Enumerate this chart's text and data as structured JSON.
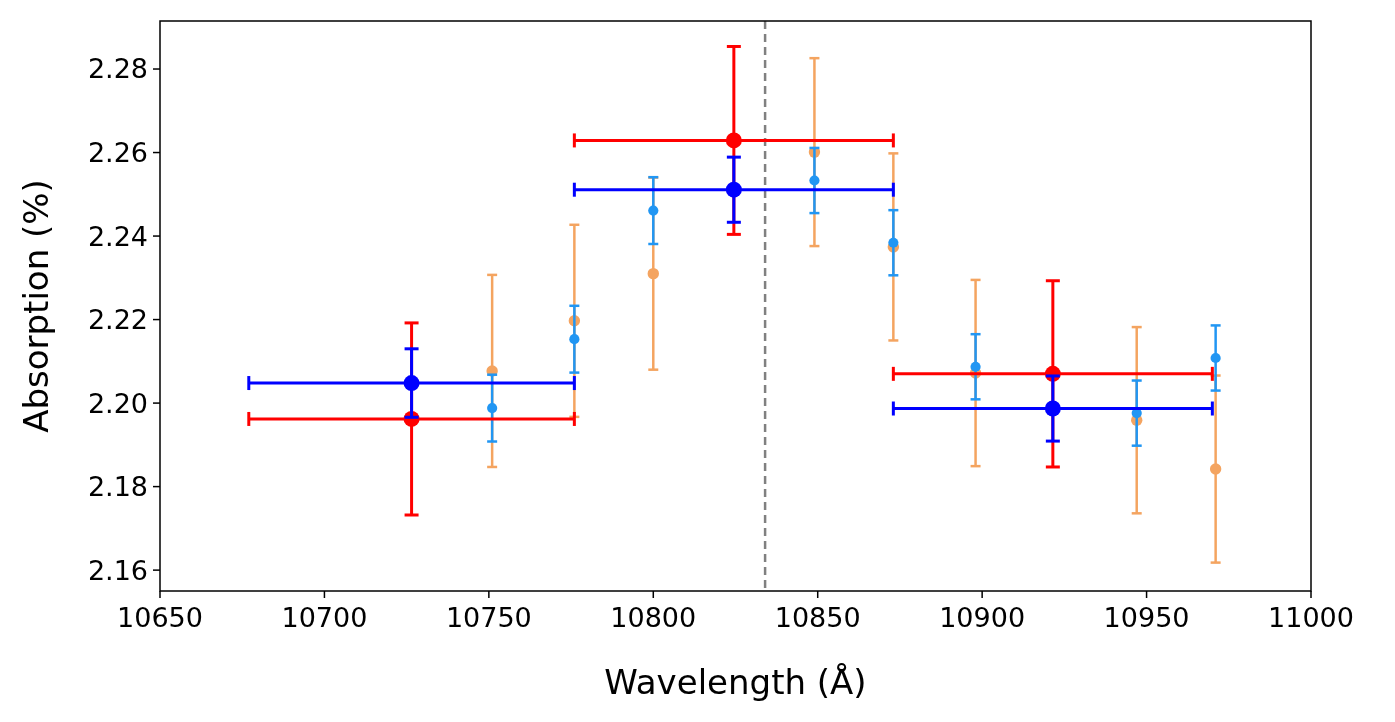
{
  "chart_data": {
    "type": "scatter",
    "xlabel": "Wavelength (Å)",
    "ylabel": "Absorption (%)",
    "xlim": [
      10650,
      11000
    ],
    "xticks": [
      10650,
      10700,
      10750,
      10800,
      10850,
      10900,
      10950,
      11000
    ],
    "ylim": [
      2.155,
      2.2915
    ],
    "yticks": [
      2.16,
      2.18,
      {
        "value": 2.2,
        "label": "2.20"
      },
      2.22,
      2.24,
      2.26,
      2.28
    ],
    "marker": "circle",
    "grid": false,
    "ref_lines": [
      {
        "axis": "x",
        "value": 10834,
        "color": "#808080",
        "line_style": "dashed"
      }
    ],
    "series": [
      {
        "color": "#f4a460",
        "x": [
          10751,
          10776,
          10800,
          10849,
          10873,
          10898,
          10947,
          10971
        ],
        "values": [
          2.2077,
          2.2197,
          2.231,
          2.2601,
          2.2374,
          2.2072,
          2.1959,
          2.1842
        ],
        "errors": [
          0.023,
          0.023,
          0.023,
          0.0225,
          0.0224,
          0.0223,
          0.0223,
          0.0224
        ]
      },
      {
        "color": "#2196f3",
        "x": [
          10751,
          10776,
          10800,
          10849,
          10873,
          10898,
          10947,
          10971
        ],
        "values": [
          2.1988,
          2.2153,
          2.2461,
          2.2533,
          2.2384,
          2.2087,
          2.1976,
          2.2108
        ],
        "errors": [
          0.008,
          0.008,
          0.008,
          0.0078,
          0.0078,
          0.0078,
          0.0078,
          0.0078
        ]
      },
      {
        "color": "#ff0000",
        "x": [
          10726.5,
          10824.5,
          10921.5
        ],
        "values": [
          2.1962,
          2.2629,
          2.207
        ],
        "errors": [
          0.023,
          0.0225,
          0.0223
        ],
        "xerrors": [
          49.5,
          48.5,
          48.5
        ]
      },
      {
        "color": "#0000ff",
        "x": [
          10726.5,
          10824.5,
          10921.5
        ],
        "values": [
          2.2048,
          2.2511,
          2.1987
        ],
        "errors": [
          0.0082,
          0.0078,
          0.0078
        ],
        "xerrors": [
          49.5,
          48.5,
          48.5
        ]
      }
    ]
  }
}
